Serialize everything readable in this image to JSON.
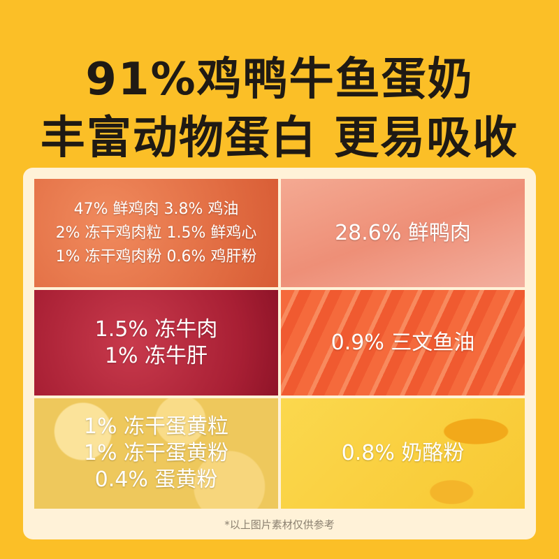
{
  "headline": [
    "91%鸡鸭牛鱼蛋奶",
    "丰富动物蛋白 更易吸收"
  ],
  "panels": [
    {
      "name": "chicken",
      "lines": [
        "47% 鲜鸡肉  3.8% 鸡油",
        "2% 冻干鸡肉粒  1.5% 鲜鸡心",
        "1% 冻干鸡肉粉  0.6% 鸡肝粉"
      ]
    },
    {
      "name": "duck",
      "lines": [
        "28.6% 鲜鸭肉"
      ]
    },
    {
      "name": "beef",
      "lines": [
        "1.5% 冻牛肉",
        "1% 冻牛肝"
      ]
    },
    {
      "name": "salmon",
      "lines": [
        "0.9% 三文鱼油"
      ]
    },
    {
      "name": "egg",
      "lines": [
        "1% 冻干蛋黄粒",
        "1% 冻干蛋黄粉",
        "0.4% 蛋黄粉"
      ]
    },
    {
      "name": "cheese",
      "lines": [
        "0.8% 奶酪粉"
      ]
    }
  ],
  "footnote": "*以上图片素材仅供参考",
  "colors": {
    "background": "#fbbf27",
    "card": "#fff2d8",
    "title": "#1f1a14"
  }
}
